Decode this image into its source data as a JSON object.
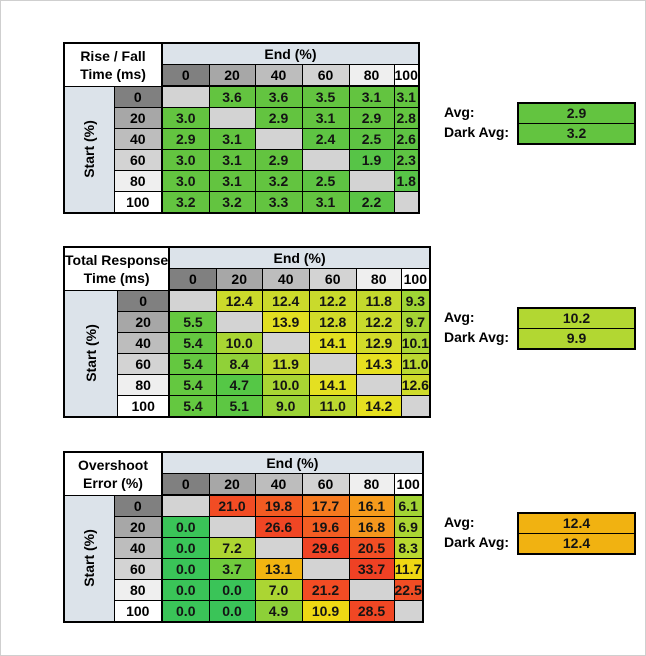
{
  "frame": {
    "background": "#ffffff",
    "border_color": "#cfcfcf"
  },
  "shared": {
    "col_group_label": "End (%)",
    "row_group_label": "Start (%)",
    "col_headers": [
      "0",
      "20",
      "40",
      "60",
      "80",
      "100"
    ],
    "row_headers": [
      "0",
      "20",
      "40",
      "60",
      "80",
      "100"
    ],
    "header_colors": [
      "#808080",
      "#a7a7a7",
      "#bdbdbd",
      "#d3d3d3",
      "#efefef",
      "#ffffff"
    ],
    "group_header_bg": "#dce3ea",
    "blank_cell_color": "#d3d3d3"
  },
  "tables": [
    {
      "name": "rise-fall-time",
      "corner": [
        "Rise / Fall",
        "Time (ms)"
      ],
      "cells": [
        [
          {
            "v": "",
            "c": "#d3d3d3"
          },
          {
            "v": "3.6",
            "c": "#63c440"
          },
          {
            "v": "3.6",
            "c": "#63c440"
          },
          {
            "v": "3.5",
            "c": "#63c440"
          },
          {
            "v": "3.1",
            "c": "#63c440"
          },
          {
            "v": "3.1",
            "c": "#63c440"
          }
        ],
        [
          {
            "v": "3.0",
            "c": "#63c440"
          },
          {
            "v": "",
            "c": "#d3d3d3"
          },
          {
            "v": "2.9",
            "c": "#63c440"
          },
          {
            "v": "3.1",
            "c": "#63c440"
          },
          {
            "v": "2.9",
            "c": "#63c440"
          },
          {
            "v": "2.8",
            "c": "#63c440"
          }
        ],
        [
          {
            "v": "2.9",
            "c": "#63c440"
          },
          {
            "v": "3.1",
            "c": "#63c440"
          },
          {
            "v": "",
            "c": "#d3d3d3"
          },
          {
            "v": "2.4",
            "c": "#5ec443"
          },
          {
            "v": "2.5",
            "c": "#5ec443"
          },
          {
            "v": "2.6",
            "c": "#5ec443"
          }
        ],
        [
          {
            "v": "3.0",
            "c": "#63c440"
          },
          {
            "v": "3.1",
            "c": "#63c440"
          },
          {
            "v": "2.9",
            "c": "#63c440"
          },
          {
            "v": "",
            "c": "#d3d3d3"
          },
          {
            "v": "1.9",
            "c": "#57c447"
          },
          {
            "v": "2.3",
            "c": "#5ec443"
          }
        ],
        [
          {
            "v": "3.0",
            "c": "#63c440"
          },
          {
            "v": "3.1",
            "c": "#63c440"
          },
          {
            "v": "3.2",
            "c": "#63c440"
          },
          {
            "v": "2.5",
            "c": "#5ec443"
          },
          {
            "v": "",
            "c": "#d3d3d3"
          },
          {
            "v": "1.8",
            "c": "#57c447"
          }
        ],
        [
          {
            "v": "3.2",
            "c": "#63c440"
          },
          {
            "v": "3.2",
            "c": "#63c440"
          },
          {
            "v": "3.3",
            "c": "#63c440"
          },
          {
            "v": "3.1",
            "c": "#63c440"
          },
          {
            "v": "2.2",
            "c": "#5ac445"
          },
          {
            "v": "",
            "c": "#d3d3d3"
          }
        ]
      ],
      "avg": {
        "label": "Avg:",
        "value": "2.9",
        "color": "#63c440"
      },
      "dark_avg": {
        "label": "Dark Avg:",
        "value": "3.2",
        "color": "#63c440"
      }
    },
    {
      "name": "total-response-time",
      "corner": [
        "Total Response",
        "Time (ms)"
      ],
      "cells": [
        [
          {
            "v": "",
            "c": "#d3d3d3"
          },
          {
            "v": "12.4",
            "c": "#cbda2b"
          },
          {
            "v": "12.4",
            "c": "#cbda2b"
          },
          {
            "v": "12.2",
            "c": "#c9da2c"
          },
          {
            "v": "11.8",
            "c": "#c3d92d"
          },
          {
            "v": "9.3",
            "c": "#9ed435"
          }
        ],
        [
          {
            "v": "5.5",
            "c": "#65c840"
          },
          {
            "v": "",
            "c": "#d3d3d3"
          },
          {
            "v": "13.9",
            "c": "#e2df22"
          },
          {
            "v": "12.8",
            "c": "#d1db29"
          },
          {
            "v": "12.2",
            "c": "#c9da2c"
          },
          {
            "v": "9.7",
            "c": "#a4d434"
          }
        ],
        [
          {
            "v": "5.4",
            "c": "#64c840"
          },
          {
            "v": "10.0",
            "c": "#a9d533"
          },
          {
            "v": "",
            "c": "#d3d3d3"
          },
          {
            "v": "14.1",
            "c": "#e4e021"
          },
          {
            "v": "12.9",
            "c": "#d2db29"
          },
          {
            "v": "10.1",
            "c": "#abd533"
          }
        ],
        [
          {
            "v": "5.4",
            "c": "#64c840"
          },
          {
            "v": "8.4",
            "c": "#90d138"
          },
          {
            "v": "11.9",
            "c": "#c5d92d"
          },
          {
            "v": "",
            "c": "#d3d3d3"
          },
          {
            "v": "14.3",
            "c": "#e6e020"
          },
          {
            "v": "11.0",
            "c": "#bbd830"
          }
        ],
        [
          {
            "v": "5.4",
            "c": "#64c840"
          },
          {
            "v": "4.7",
            "c": "#55c746"
          },
          {
            "v": "10.0",
            "c": "#a9d533"
          },
          {
            "v": "14.1",
            "c": "#e4e021"
          },
          {
            "v": "",
            "c": "#d3d3d3"
          },
          {
            "v": "12.6",
            "c": "#cfdb2a"
          }
        ],
        [
          {
            "v": "5.4",
            "c": "#64c840"
          },
          {
            "v": "5.1",
            "c": "#5dc743"
          },
          {
            "v": "9.0",
            "c": "#9bd336"
          },
          {
            "v": "11.0",
            "c": "#bbd830"
          },
          {
            "v": "14.2",
            "c": "#e5e020"
          },
          {
            "v": "",
            "c": "#d3d3d3"
          }
        ]
      ],
      "avg": {
        "label": "Avg:",
        "value": "10.2",
        "color": "#b2d732"
      },
      "dark_avg": {
        "label": "Dark Avg:",
        "value": "9.9",
        "color": "#b2d732"
      }
    },
    {
      "name": "overshoot-error",
      "corner": [
        "Overshoot",
        "Error (%)"
      ],
      "cells": [
        [
          {
            "v": "",
            "c": "#d3d3d3"
          },
          {
            "v": "21.0",
            "c": "#f24c24"
          },
          {
            "v": "19.8",
            "c": "#f35b22"
          },
          {
            "v": "17.7",
            "c": "#f5791f"
          },
          {
            "v": "16.1",
            "c": "#f69b1c"
          },
          {
            "v": "6.1",
            "c": "#a2d434"
          }
        ],
        [
          {
            "v": "0.0",
            "c": "#3ac458"
          },
          {
            "v": "",
            "c": "#d3d3d3"
          },
          {
            "v": "26.6",
            "c": "#f04624"
          },
          {
            "v": "19.6",
            "c": "#f35d22"
          },
          {
            "v": "16.8",
            "c": "#f5961d"
          },
          {
            "v": "6.9",
            "c": "#aad533"
          }
        ],
        [
          {
            "v": "0.0",
            "c": "#3ac458"
          },
          {
            "v": "7.2",
            "c": "#add532"
          },
          {
            "v": "",
            "c": "#d3d3d3"
          },
          {
            "v": "29.6",
            "c": "#f04425"
          },
          {
            "v": "20.5",
            "c": "#f24e24"
          },
          {
            "v": "8.3",
            "c": "#b9d830"
          }
        ],
        [
          {
            "v": "0.0",
            "c": "#3ac458"
          },
          {
            "v": "3.7",
            "c": "#70cb3d"
          },
          {
            "v": "13.1",
            "c": "#f2b411"
          },
          {
            "v": "",
            "c": "#d3d3d3"
          },
          {
            "v": "33.7",
            "c": "#ef4124"
          },
          {
            "v": "11.7",
            "c": "#efd713"
          }
        ],
        [
          {
            "v": "0.0",
            "c": "#3ac458"
          },
          {
            "v": "0.0",
            "c": "#3ac458"
          },
          {
            "v": "7.0",
            "c": "#abd533"
          },
          {
            "v": "21.2",
            "c": "#f24c24"
          },
          {
            "v": "",
            "c": "#d3d3d3"
          },
          {
            "v": "22.5",
            "c": "#f14d24"
          }
        ],
        [
          {
            "v": "0.0",
            "c": "#3ac458"
          },
          {
            "v": "0.0",
            "c": "#3ac458"
          },
          {
            "v": "4.9",
            "c": "#8dd038"
          },
          {
            "v": "10.9",
            "c": "#eed814"
          },
          {
            "v": "28.5",
            "c": "#f04724"
          },
          {
            "v": "",
            "c": "#d3d3d3"
          }
        ]
      ],
      "avg": {
        "label": "Avg:",
        "value": "12.4",
        "color": "#f1b211"
      },
      "dark_avg": {
        "label": "Dark Avg:",
        "value": "12.4",
        "color": "#f1b211"
      }
    }
  ],
  "chart_data": [
    {
      "type": "heatmap",
      "title": "Rise / Fall Time (ms)",
      "xlabel": "End (%)",
      "ylabel": "Start (%)",
      "x_categories": [
        0,
        20,
        40,
        60,
        80,
        100
      ],
      "y_categories": [
        0,
        20,
        40,
        60,
        80,
        100
      ],
      "values": [
        [
          null,
          3.6,
          3.6,
          3.5,
          3.1,
          3.1
        ],
        [
          3.0,
          null,
          2.9,
          3.1,
          2.9,
          2.8
        ],
        [
          2.9,
          3.1,
          null,
          2.4,
          2.5,
          2.6
        ],
        [
          3.0,
          3.1,
          2.9,
          null,
          1.9,
          2.3
        ],
        [
          3.0,
          3.1,
          3.2,
          2.5,
          null,
          1.8
        ],
        [
          3.2,
          3.2,
          3.3,
          3.1,
          2.2,
          null
        ]
      ],
      "avg": 2.9,
      "dark_avg": 3.2
    },
    {
      "type": "heatmap",
      "title": "Total Response Time (ms)",
      "xlabel": "End (%)",
      "ylabel": "Start (%)",
      "x_categories": [
        0,
        20,
        40,
        60,
        80,
        100
      ],
      "y_categories": [
        0,
        20,
        40,
        60,
        80,
        100
      ],
      "values": [
        [
          null,
          12.4,
          12.4,
          12.2,
          11.8,
          9.3
        ],
        [
          5.5,
          null,
          13.9,
          12.8,
          12.2,
          9.7
        ],
        [
          5.4,
          10.0,
          null,
          14.1,
          12.9,
          10.1
        ],
        [
          5.4,
          8.4,
          11.9,
          null,
          14.3,
          11.0
        ],
        [
          5.4,
          4.7,
          10.0,
          14.1,
          null,
          12.6
        ],
        [
          5.4,
          5.1,
          9.0,
          11.0,
          14.2,
          null
        ]
      ],
      "avg": 10.2,
      "dark_avg": 9.9
    },
    {
      "type": "heatmap",
      "title": "Overshoot Error (%)",
      "xlabel": "End (%)",
      "ylabel": "Start (%)",
      "x_categories": [
        0,
        20,
        40,
        60,
        80,
        100
      ],
      "y_categories": [
        0,
        20,
        40,
        60,
        80,
        100
      ],
      "values": [
        [
          null,
          21.0,
          19.8,
          17.7,
          16.1,
          6.1
        ],
        [
          0.0,
          null,
          26.6,
          19.6,
          16.8,
          6.9
        ],
        [
          0.0,
          7.2,
          null,
          29.6,
          20.5,
          8.3
        ],
        [
          0.0,
          3.7,
          13.1,
          null,
          33.7,
          11.7
        ],
        [
          0.0,
          0.0,
          7.0,
          21.2,
          null,
          22.5
        ],
        [
          0.0,
          0.0,
          4.9,
          10.9,
          28.5,
          null
        ]
      ],
      "avg": 12.4,
      "dark_avg": 12.4
    }
  ]
}
